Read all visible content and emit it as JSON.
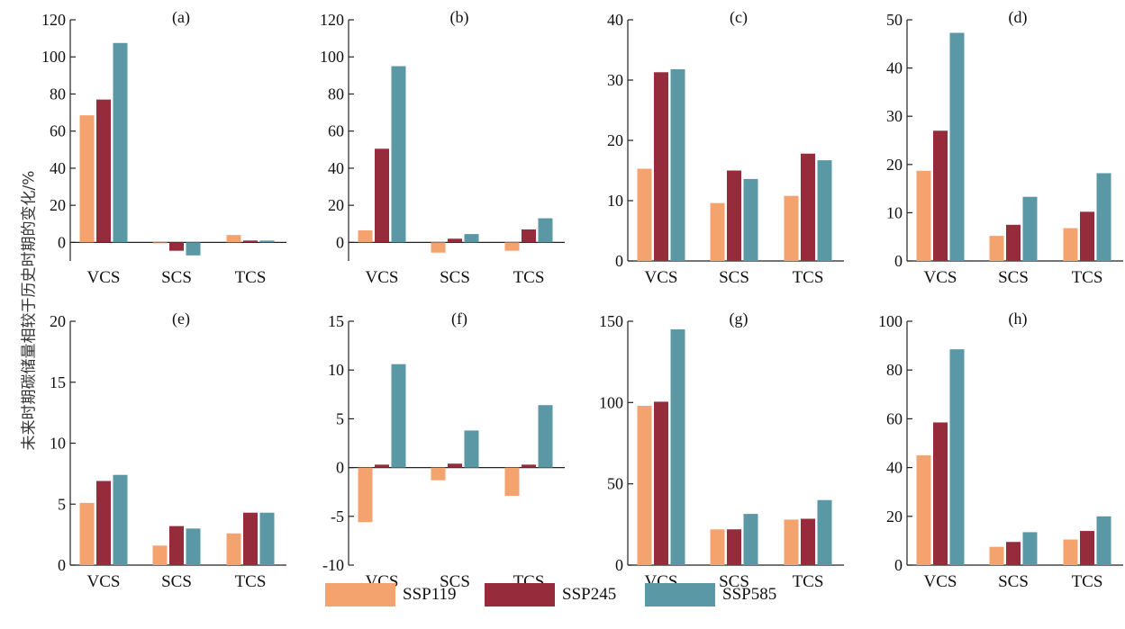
{
  "y_axis_label": "未来时期碳储量相较于历史时期的变化/%",
  "legend": [
    {
      "label": "SSP119",
      "color": "#F4A26E"
    },
    {
      "label": "SSP245",
      "color": "#952B3B"
    },
    {
      "label": "SSP585",
      "color": "#5B98A5"
    }
  ],
  "chart_data": [
    {
      "type": "bar",
      "title": "(a)",
      "categories": [
        "VCS",
        "SCS",
        "TCS"
      ],
      "ylim": [
        -10,
        120
      ],
      "ticks": [
        0,
        20,
        40,
        60,
        80,
        100,
        120
      ],
      "series": [
        {
          "name": "SSP119",
          "values": [
            68.5,
            -0.5,
            4
          ]
        },
        {
          "name": "SSP245",
          "values": [
            77,
            -4.5,
            1
          ]
        },
        {
          "name": "SSP585",
          "values": [
            107.5,
            -7,
            1
          ]
        }
      ]
    },
    {
      "type": "bar",
      "title": "(b)",
      "categories": [
        "VCS",
        "SCS",
        "TCS"
      ],
      "ylim": [
        -10,
        120
      ],
      "ticks": [
        0,
        20,
        40,
        60,
        80,
        100,
        120
      ],
      "series": [
        {
          "name": "SSP119",
          "values": [
            6.5,
            -5.5,
            -4.5
          ]
        },
        {
          "name": "SSP245",
          "values": [
            50.5,
            2,
            7
          ]
        },
        {
          "name": "SSP585",
          "values": [
            95,
            4.5,
            13
          ]
        }
      ]
    },
    {
      "type": "bar",
      "title": "(c)",
      "categories": [
        "VCS",
        "SCS",
        "TCS"
      ],
      "ylim": [
        0,
        40
      ],
      "ticks": [
        0,
        10,
        20,
        30,
        40
      ],
      "series": [
        {
          "name": "SSP119",
          "values": [
            15.3,
            9.6,
            10.8
          ]
        },
        {
          "name": "SSP245",
          "values": [
            31.3,
            15,
            17.8
          ]
        },
        {
          "name": "SSP585",
          "values": [
            31.8,
            13.6,
            16.7
          ]
        }
      ]
    },
    {
      "type": "bar",
      "title": "(d)",
      "categories": [
        "VCS",
        "SCS",
        "TCS"
      ],
      "ylim": [
        0,
        50
      ],
      "ticks": [
        0,
        10,
        20,
        30,
        40,
        50
      ],
      "series": [
        {
          "name": "SSP119",
          "values": [
            18.7,
            5.2,
            6.8
          ]
        },
        {
          "name": "SSP245",
          "values": [
            27,
            7.5,
            10.2
          ]
        },
        {
          "name": "SSP585",
          "values": [
            47.3,
            13.3,
            18.2
          ]
        }
      ]
    },
    {
      "type": "bar",
      "title": "(e)",
      "categories": [
        "VCS",
        "SCS",
        "TCS"
      ],
      "ylim": [
        0,
        20
      ],
      "ticks": [
        0,
        5,
        10,
        15,
        20
      ],
      "series": [
        {
          "name": "SSP119",
          "values": [
            5.1,
            1.6,
            2.6
          ]
        },
        {
          "name": "SSP245",
          "values": [
            6.9,
            3.2,
            4.3
          ]
        },
        {
          "name": "SSP585",
          "values": [
            7.4,
            3,
            4.3
          ]
        }
      ]
    },
    {
      "type": "bar",
      "title": "(f)",
      "categories": [
        "VCS",
        "SCS",
        "TCS"
      ],
      "ylim": [
        -10,
        15
      ],
      "ticks": [
        -10,
        -5,
        0,
        5,
        10,
        15
      ],
      "series": [
        {
          "name": "SSP119",
          "values": [
            -5.6,
            -1.3,
            -2.9
          ]
        },
        {
          "name": "SSP245",
          "values": [
            0.3,
            0.4,
            0.3
          ]
        },
        {
          "name": "SSP585",
          "values": [
            10.6,
            3.8,
            6.4
          ]
        }
      ]
    },
    {
      "type": "bar",
      "title": "(g)",
      "categories": [
        "VCS",
        "SCS",
        "TCS"
      ],
      "ylim": [
        0,
        150
      ],
      "ticks": [
        0,
        50,
        100,
        150
      ],
      "series": [
        {
          "name": "SSP119",
          "values": [
            98,
            22,
            28
          ]
        },
        {
          "name": "SSP245",
          "values": [
            100.5,
            22,
            28.5
          ]
        },
        {
          "name": "SSP585",
          "values": [
            145,
            31.5,
            40
          ]
        }
      ]
    },
    {
      "type": "bar",
      "title": "(h)",
      "categories": [
        "VCS",
        "SCS",
        "TCS"
      ],
      "ylim": [
        0,
        100
      ],
      "ticks": [
        0,
        20,
        40,
        60,
        80,
        100
      ],
      "series": [
        {
          "name": "SSP119",
          "values": [
            45,
            7.5,
            10.5
          ]
        },
        {
          "name": "SSP245",
          "values": [
            58.5,
            9.5,
            14
          ]
        },
        {
          "name": "SSP585",
          "values": [
            88.5,
            13.5,
            20
          ]
        }
      ]
    }
  ]
}
